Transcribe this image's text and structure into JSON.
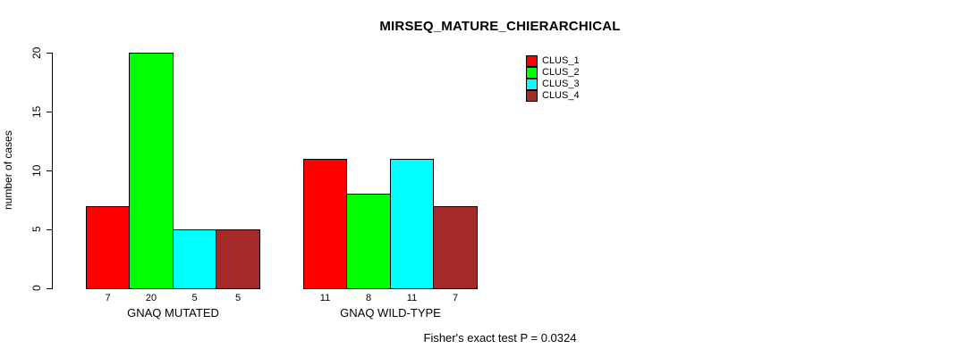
{
  "chart_data": {
    "type": "bar",
    "title": "MIRSEQ_MATURE_CHIERARCHICAL",
    "xlabel": "",
    "ylabel": "number of cases",
    "ylim": [
      0,
      20
    ],
    "y_ticks": [
      0,
      5,
      10,
      15,
      20
    ],
    "grid": false,
    "legend_position": "inside-top-right",
    "bar_value_labels_shown": true,
    "categories": [
      "GNAQ MUTATED",
      "GNAQ WILD-TYPE"
    ],
    "series": [
      {
        "name": "CLUS_1",
        "color": "#FF0000",
        "values": [
          7,
          11
        ]
      },
      {
        "name": "CLUS_2",
        "color": "#00FF00",
        "values": [
          20,
          8
        ]
      },
      {
        "name": "CLUS_3",
        "color": "#00FFFF",
        "values": [
          5,
          11
        ]
      },
      {
        "name": "CLUS_4",
        "color": "#A52A2A",
        "values": [
          5,
          7
        ]
      }
    ],
    "annotation": "Fisher's exact test P = 0.0324"
  }
}
